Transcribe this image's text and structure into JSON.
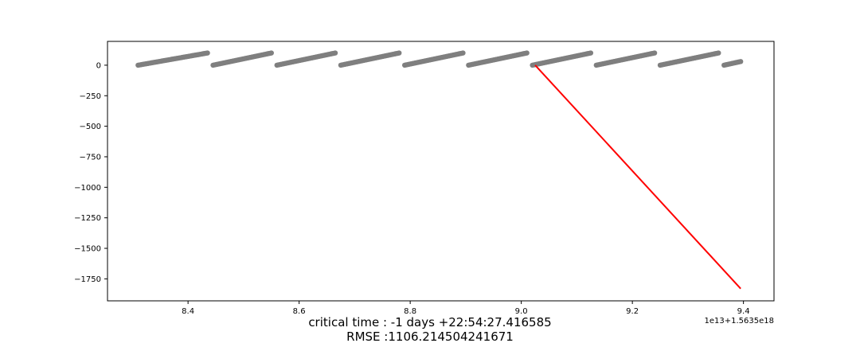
{
  "chart_data": {
    "type": "scatter",
    "title": "",
    "xlabel": "",
    "ylabel": "",
    "x_offset_label": "1e13+1.5635e18",
    "xlim": [
      8.255,
      9.455
    ],
    "ylim": [
      -1930,
      195
    ],
    "x_ticks": [
      8.4,
      8.6,
      8.8,
      9.0,
      9.2,
      9.4
    ],
    "x_tick_labels": [
      "8.4",
      "8.6",
      "8.8",
      "9.0",
      "9.2",
      "9.4"
    ],
    "y_ticks": [
      0,
      -250,
      -500,
      -750,
      -1000,
      -1250,
      -1500,
      -1750
    ],
    "y_tick_labels": [
      "0",
      "−250",
      "−500",
      "−750",
      "−1000",
      "−1250",
      "−1500",
      "−1750"
    ],
    "grid": false,
    "legend": "none",
    "series": [
      {
        "kind": "scatter",
        "color": "#7f7f7f",
        "segments": [
          {
            "x": [
              8.31,
              8.435
            ],
            "y": [
              0,
              100
            ]
          },
          {
            "x": [
              8.445,
              8.55
            ],
            "y": [
              0,
              100
            ]
          },
          {
            "x": [
              8.56,
              8.665
            ],
            "y": [
              0,
              100
            ]
          },
          {
            "x": [
              8.675,
              8.78
            ],
            "y": [
              0,
              100
            ]
          },
          {
            "x": [
              8.79,
              8.895
            ],
            "y": [
              0,
              100
            ]
          },
          {
            "x": [
              8.905,
              9.01
            ],
            "y": [
              0,
              100
            ]
          },
          {
            "x": [
              9.02,
              9.125
            ],
            "y": [
              0,
              100
            ]
          },
          {
            "x": [
              9.135,
              9.24
            ],
            "y": [
              0,
              100
            ]
          },
          {
            "x": [
              9.25,
              9.355
            ],
            "y": [
              0,
              100
            ]
          },
          {
            "x": [
              9.365,
              9.395
            ],
            "y": [
              0,
              30
            ]
          }
        ]
      },
      {
        "kind": "line",
        "color": "#ff0000",
        "x": [
          9.025,
          9.395
        ],
        "y": [
          0,
          -1830
        ]
      }
    ]
  },
  "caption": {
    "line1": "critical time : -1 days +22:54:27.416585",
    "line2": "RMSE :1106.214504241671"
  }
}
